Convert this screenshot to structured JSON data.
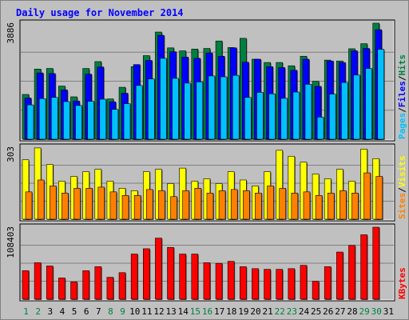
{
  "title": "Daily usage for November 2014",
  "colors": {
    "background": "#c0c0c0",
    "panel": "#c0c0c0",
    "grid": "#808080",
    "title": "#0000ff",
    "hits": "#008040",
    "files": "#0000ff",
    "pages": "#00c0ff",
    "visits": "#ffff00",
    "sites": "#ff8000",
    "kbytes": "#ff0000",
    "weekend_day": "#008040",
    "weekday": "#000000"
  },
  "chart_data": {
    "type": "bar",
    "title": "Daily usage for November 2014",
    "categories": [
      "1",
      "2",
      "3",
      "4",
      "5",
      "6",
      "7",
      "8",
      "9",
      "10",
      "11",
      "12",
      "13",
      "14",
      "15",
      "16",
      "17",
      "18",
      "19",
      "20",
      "21",
      "22",
      "23",
      "24",
      "25",
      "26",
      "27",
      "28",
      "29",
      "30",
      "31"
    ],
    "weekend_days": [
      "1",
      "2",
      "8",
      "9",
      "15",
      "16",
      "22",
      "23",
      "29",
      "30"
    ],
    "panels": [
      {
        "name": "hits-files-pages",
        "ymax_label": "3886",
        "ylim": [
          0,
          3886
        ],
        "right_labels": [
          {
            "text": "Pages",
            "color": "#00c0ff"
          },
          {
            "text": "/",
            "color": "#000000"
          },
          {
            "text": "Files",
            "color": "#0000ff"
          },
          {
            "text": "/",
            "color": "#000000"
          },
          {
            "text": "Hits",
            "color": "#008040"
          }
        ],
        "series": [
          {
            "name": "Hits",
            "color": "#008040",
            "values": [
              1500,
              2350,
              2370,
              1780,
              1420,
              2370,
              2600,
              1350,
              1740,
              2430,
              2800,
              3590,
              3060,
              2960,
              3020,
              3040,
              3290,
              3070,
              3380,
              2680,
              2570,
              2570,
              2460,
              2780,
              1940,
              2650,
              2620,
              3030,
              3200,
              3890,
              0
            ]
          },
          {
            "name": "Files",
            "color": "#0000ff",
            "values": [
              1380,
              2220,
              2200,
              1650,
              1280,
              2180,
              2420,
              1250,
              1540,
              2500,
              2640,
              3480,
              2930,
              2750,
              2710,
              2890,
              2780,
              3060,
              2580,
              2680,
              2430,
              2400,
              2310,
              2680,
              1770,
              2620,
              2570,
              2960,
              3040,
              3670,
              0
            ]
          },
          {
            "name": "Pages",
            "color": "#00c0ff",
            "values": [
              1150,
              1360,
              1400,
              1260,
              1130,
              1270,
              1340,
              1000,
              1190,
              1800,
              2020,
              2710,
              2040,
              1880,
              1920,
              2120,
              2090,
              2140,
              1400,
              1570,
              1520,
              1370,
              1580,
              1840,
              740,
              1510,
              1900,
              2150,
              2370,
              3010,
              0
            ]
          }
        ]
      },
      {
        "name": "visits-sites",
        "ymax_label": "303",
        "ylim": [
          0,
          303
        ],
        "right_labels": [
          {
            "text": "Sites",
            "color": "#ff8000"
          },
          {
            "text": "/",
            "color": "#000000"
          },
          {
            "text": "Visits",
            "color": "#ffff00"
          }
        ],
        "series": [
          {
            "name": "Visits",
            "color": "#ffff00",
            "values": [
              250,
              300,
              230,
              160,
              180,
              200,
              210,
              160,
              130,
              120,
              200,
              210,
              150,
              215,
              160,
              170,
              150,
              200,
              165,
              140,
              200,
              290,
              265,
              240,
              190,
              170,
              210,
              160,
              295,
              255,
              0
            ]
          },
          {
            "name": "Sites",
            "color": "#ff8000",
            "values": [
              115,
              165,
              140,
              110,
              130,
              130,
              135,
              115,
              100,
              100,
              125,
              120,
              95,
              120,
              130,
              110,
              120,
              125,
              120,
              110,
              140,
              130,
              110,
              115,
              100,
              110,
              120,
              110,
              195,
              180,
              0
            ]
          }
        ]
      },
      {
        "name": "kbytes",
        "ymax_label": "108403",
        "ylim": [
          0,
          108403
        ],
        "right_labels": [
          {
            "text": "KBytes",
            "color": "#ff0000"
          }
        ],
        "series": [
          {
            "name": "KBytes",
            "color": "#ff0000",
            "values": [
              43000,
              55000,
              50000,
              32000,
              26000,
              43000,
              49000,
              33000,
              40000,
              68000,
              76000,
              92000,
              78000,
              68000,
              68000,
              55000,
              54000,
              57000,
              49000,
              46000,
              45000,
              45000,
              46000,
              51000,
              27000,
              49000,
              71000,
              81000,
              97000,
              110000,
              0
            ]
          }
        ]
      }
    ]
  }
}
